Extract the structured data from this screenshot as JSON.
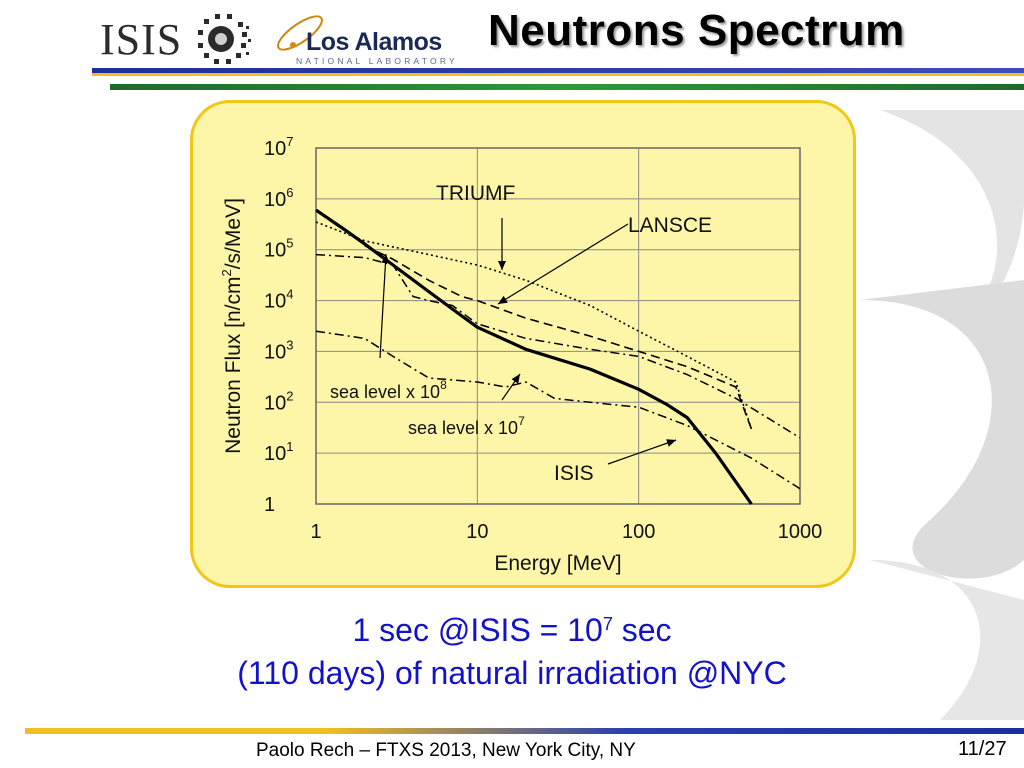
{
  "header": {
    "title": "Neutrons Spectrum",
    "logo_isis": "ISIS",
    "logo_lanl_name": "Los Alamos",
    "logo_lanl_sub": "NATIONAL LABORATORY"
  },
  "chart_data": {
    "type": "line",
    "xlabel": "Energy [MeV]",
    "ylabel": "Neutron Flux [n/cm²/s/MeV]",
    "x_scale": "log",
    "y_scale": "log",
    "xlim": [
      1,
      1000
    ],
    "ylim": [
      1,
      10000000
    ],
    "grid": true,
    "x_ticks": [
      "1",
      "10",
      "100",
      "1000"
    ],
    "y_ticks": [
      {
        "base": "1",
        "exp": ""
      },
      {
        "base": "10",
        "exp": "1"
      },
      {
        "base": "10",
        "exp": "2"
      },
      {
        "base": "10",
        "exp": "3"
      },
      {
        "base": "10",
        "exp": "4"
      },
      {
        "base": "10",
        "exp": "5"
      },
      {
        "base": "10",
        "exp": "6"
      },
      {
        "base": "10",
        "exp": "7"
      }
    ],
    "series": [
      {
        "name": "ISIS",
        "style": "solid",
        "points": [
          [
            1,
            600000
          ],
          [
            1.5,
            250000
          ],
          [
            2,
            130000
          ],
          [
            3,
            50000
          ],
          [
            5,
            15000
          ],
          [
            8,
            5000
          ],
          [
            10,
            3000
          ],
          [
            20,
            1100
          ],
          [
            50,
            450
          ],
          [
            100,
            180
          ],
          [
            150,
            90
          ],
          [
            200,
            50
          ],
          [
            300,
            10
          ],
          [
            500,
            1
          ]
        ]
      },
      {
        "name": "TRIUMF",
        "style": "dotted",
        "points": [
          [
            1,
            350000
          ],
          [
            2,
            150000
          ],
          [
            5,
            80000
          ],
          [
            10,
            50000
          ],
          [
            20,
            25000
          ],
          [
            50,
            8000
          ],
          [
            100,
            2500
          ],
          [
            200,
            800
          ],
          [
            400,
            250
          ],
          [
            500,
            30
          ]
        ]
      },
      {
        "name": "LANSCE",
        "style": "dashed",
        "points": [
          [
            2,
            120000
          ],
          [
            3,
            65000
          ],
          [
            5,
            25000
          ],
          [
            8,
            12000
          ],
          [
            10,
            10000
          ],
          [
            20,
            4500
          ],
          [
            50,
            2000
          ],
          [
            100,
            1000
          ],
          [
            200,
            500
          ],
          [
            400,
            200
          ],
          [
            500,
            30
          ]
        ]
      },
      {
        "name": "sea level x 10^8",
        "style": "dashdot",
        "points": [
          [
            1,
            80000
          ],
          [
            2,
            70000
          ],
          [
            3,
            50000
          ],
          [
            4,
            12000
          ],
          [
            5,
            10000
          ],
          [
            7,
            8000
          ],
          [
            10,
            3500
          ],
          [
            20,
            1800
          ],
          [
            50,
            1100
          ],
          [
            100,
            800
          ],
          [
            200,
            350
          ],
          [
            400,
            120
          ],
          [
            1000,
            20
          ]
        ]
      },
      {
        "name": "sea level x 10^7",
        "style": "dashdot",
        "points": [
          [
            1,
            2500
          ],
          [
            2,
            1800
          ],
          [
            3,
            800
          ],
          [
            5,
            300
          ],
          [
            10,
            250
          ],
          [
            15,
            200
          ],
          [
            20,
            250
          ],
          [
            30,
            120
          ],
          [
            50,
            100
          ],
          [
            100,
            80
          ],
          [
            200,
            35
          ],
          [
            500,
            8
          ],
          [
            1000,
            2
          ]
        ]
      }
    ],
    "annotations": [
      {
        "text": "TRIUMF",
        "target_series": "TRIUMF"
      },
      {
        "text": "LANSCE",
        "target_series": "LANSCE"
      },
      {
        "text": "sea level x 10",
        "exp": "8",
        "target_series": "sea level x 10^8"
      },
      {
        "text": "sea level x 10",
        "exp": "7",
        "target_series": "sea level x 10^7"
      },
      {
        "text": "ISIS",
        "target_series": "ISIS"
      }
    ]
  },
  "caption": {
    "line1_pre": "1 sec @ISIS = 10",
    "line1_exp": "7",
    "line1_post": " sec",
    "line2": "(110 days) of natural irradiation @NYC"
  },
  "footer": {
    "text": "Paolo Rech – FTXS 2013, New York City, NY",
    "page": "11/27"
  }
}
